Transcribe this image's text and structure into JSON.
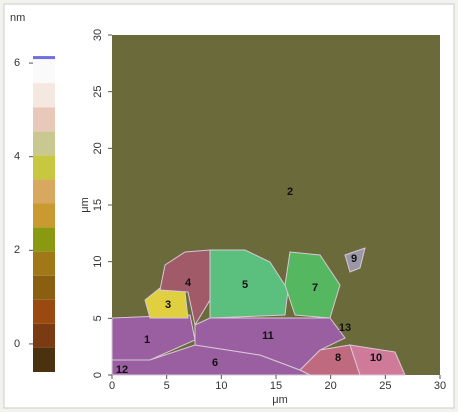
{
  "chart_data": {
    "type": "heatmap",
    "colorbar": {
      "unit": "nm",
      "lim": [
        -0.6,
        6.6
      ],
      "ticks": [
        0,
        2,
        4,
        6
      ],
      "colors": [
        "#4a3210",
        "#7a3a12",
        "#9a4a10",
        "#8a6010",
        "#a07818",
        "#8a9a10",
        "#c89a30",
        "#d8a860",
        "#c8c840",
        "#c8c890",
        "#e8c8b8",
        "#f4e8e0",
        "#fafafa",
        "#7070e0"
      ]
    },
    "xlabel": "μm",
    "ylabel": "μm",
    "xlim": [
      0,
      30
    ],
    "ylim": [
      0,
      30
    ],
    "xticks": [
      0,
      5,
      10,
      15,
      20,
      25,
      30
    ],
    "yticks": [
      0,
      5,
      10,
      15,
      20,
      25,
      30
    ],
    "annotations": [
      "1",
      "2",
      "3",
      "4",
      "5",
      "6",
      "7",
      "8",
      "9",
      "10",
      "11",
      "12",
      "13"
    ]
  }
}
